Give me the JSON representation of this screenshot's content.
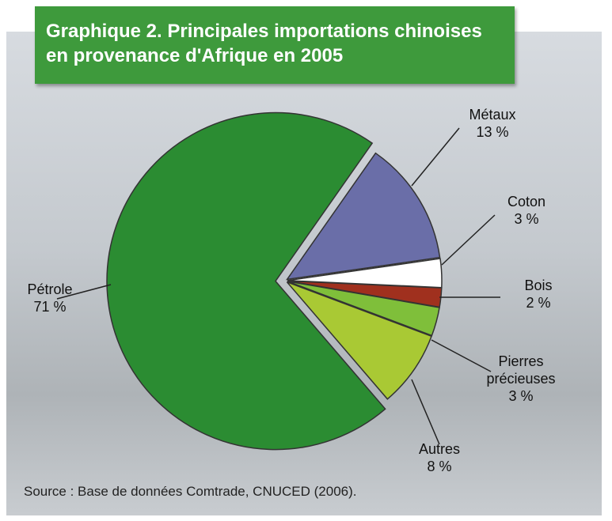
{
  "chart_data": {
    "type": "pie",
    "title": "Graphique 2. Principales importations chinoises en provenance d'Afrique en 2005",
    "categories": [
      "Métaux",
      "Coton",
      "Bois",
      "Pierres précieuses",
      "Autres",
      "Pétrole"
    ],
    "values": [
      13,
      3,
      2,
      3,
      8,
      71
    ],
    "value_labels": [
      "13 %",
      "3 %",
      "2 %",
      "3 %",
      "8 %",
      "71 %"
    ],
    "colors": [
      "#6a6ea8",
      "#ffffff",
      "#a0301e",
      "#7fbf3a",
      "#a9c934",
      "#2b8c32"
    ],
    "source": "Source : Base de données Comtrade, CNUCED (2006)."
  }
}
